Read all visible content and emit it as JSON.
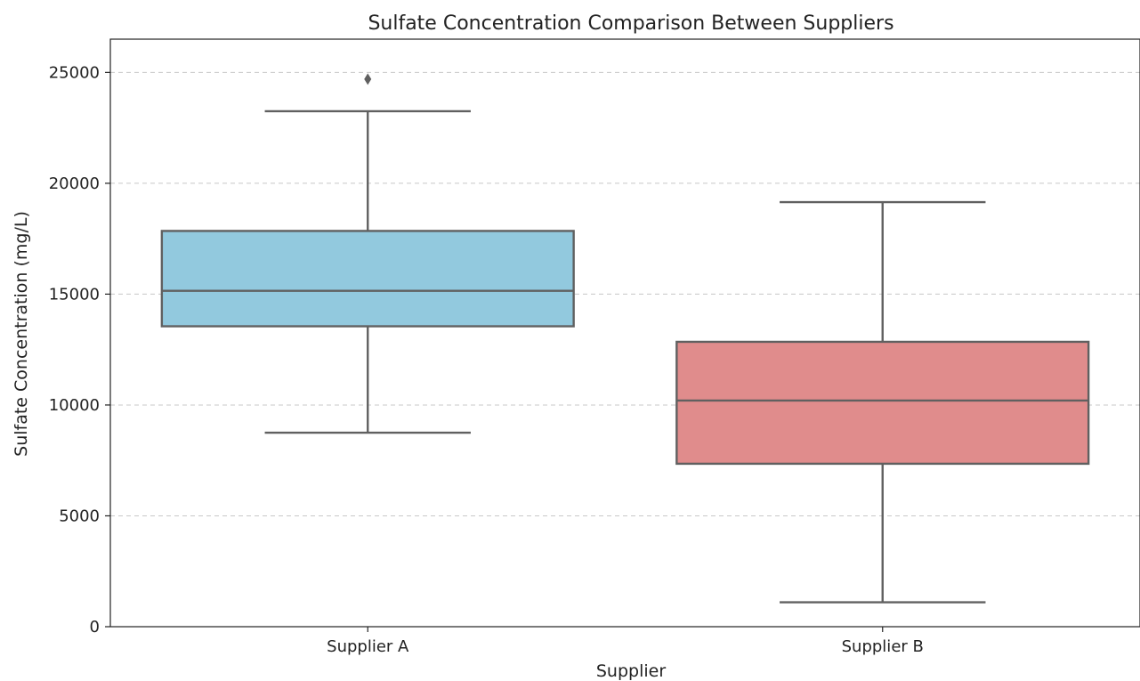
{
  "chart_data": {
    "type": "box",
    "title": "Sulfate Concentration Comparison Between Suppliers",
    "xlabel": "Supplier",
    "ylabel": "Sulfate Concentration (mg/L)",
    "ylim": [
      0,
      26500
    ],
    "yticks": [
      0,
      5000,
      10000,
      15000,
      20000,
      25000
    ],
    "grid": "horizontal dashed",
    "categories": [
      "Supplier A",
      "Supplier B"
    ],
    "boxes": [
      {
        "category": "Supplier A",
        "whisker_low": 8750,
        "q1": 13550,
        "median": 15150,
        "q3": 17850,
        "whisker_high": 23250,
        "outliers": [
          24700
        ],
        "color": "#92c9de"
      },
      {
        "category": "Supplier B",
        "whisker_low": 1100,
        "q1": 7350,
        "median": 10200,
        "q3": 12850,
        "whisker_high": 19150,
        "outliers": [],
        "color": "#e08c8c"
      }
    ]
  }
}
